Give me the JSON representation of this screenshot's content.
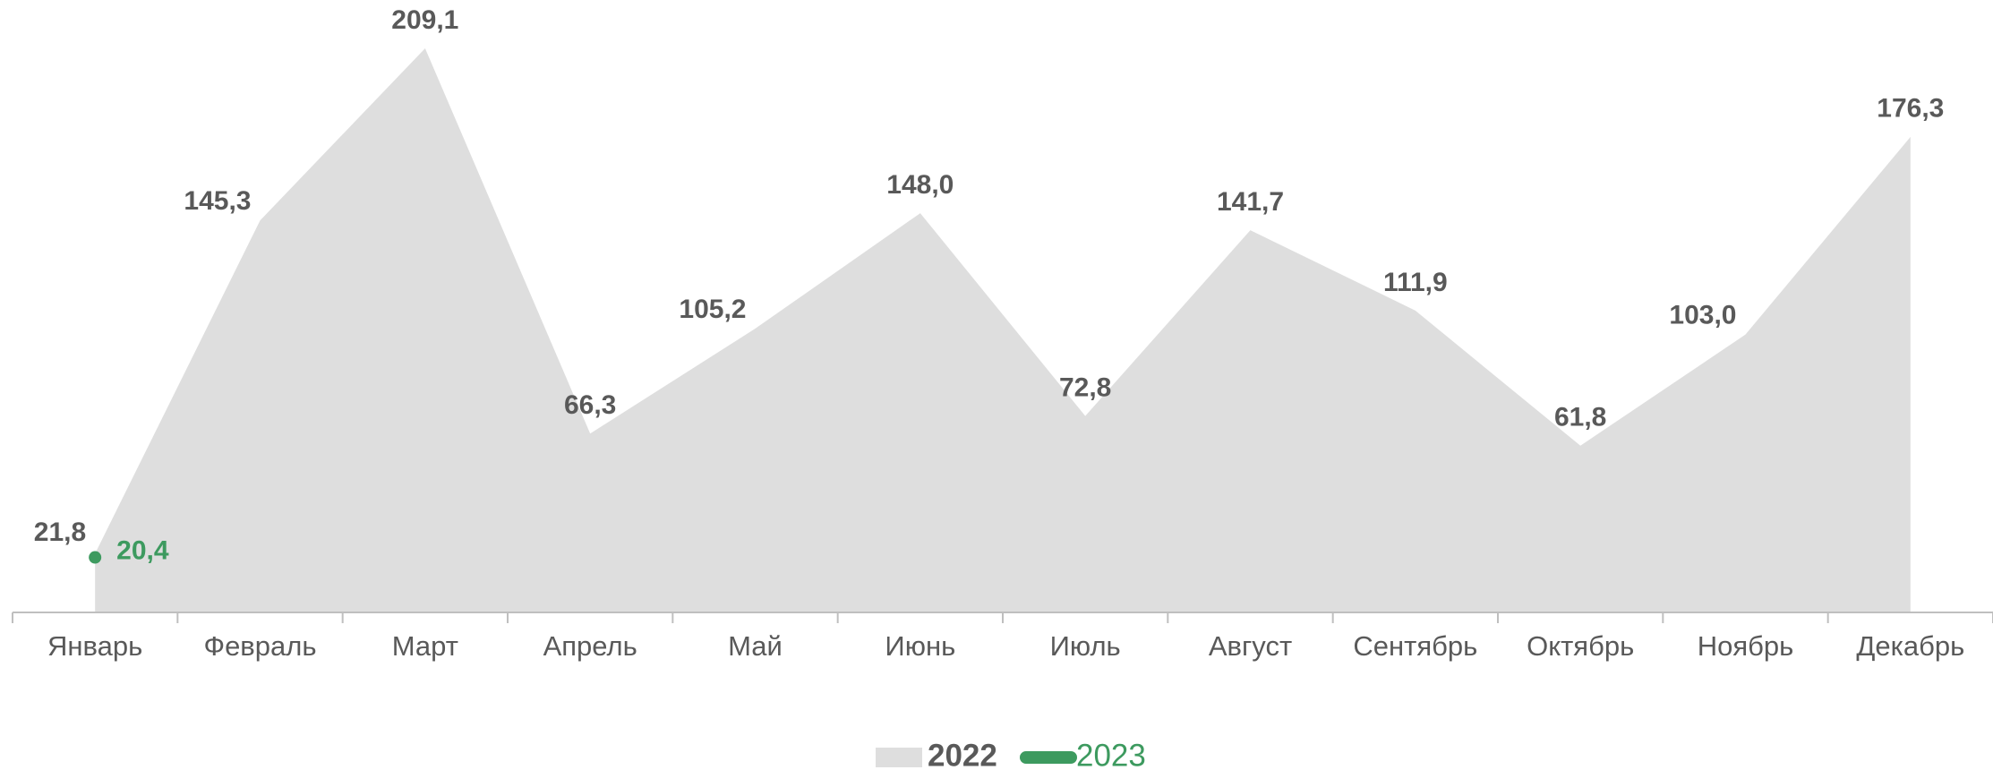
{
  "chart_data": {
    "type": "area",
    "categories": [
      "Январь",
      "Февраль",
      "Март",
      "Апрель",
      "Май",
      "Июнь",
      "Июль",
      "Август",
      "Сентябрь",
      "Октябрь",
      "Ноябрь",
      "Декабрь"
    ],
    "series": [
      {
        "name": "2022",
        "color": "#dedede",
        "label_color": "#595959",
        "values": [
          21.8,
          145.3,
          209.1,
          66.3,
          105.2,
          148.0,
          72.8,
          141.7,
          111.9,
          61.8,
          103.0,
          176.3
        ],
        "value_labels": [
          "21,8",
          "145,3",
          "209,1",
          "66,3",
          "105,2",
          "148,0",
          "72,8",
          "141,7",
          "111,9",
          "61,8",
          "103,0",
          "176,3"
        ]
      },
      {
        "name": "2023",
        "color": "#3d9a5f",
        "label_color": "#3d9a5f",
        "values": [
          20.4,
          null,
          null,
          null,
          null,
          null,
          null,
          null,
          null,
          null,
          null,
          null
        ],
        "value_labels": [
          "20,4",
          null,
          null,
          null,
          null,
          null,
          null,
          null,
          null,
          null,
          null,
          null
        ]
      }
    ],
    "legend": "bottom"
  }
}
